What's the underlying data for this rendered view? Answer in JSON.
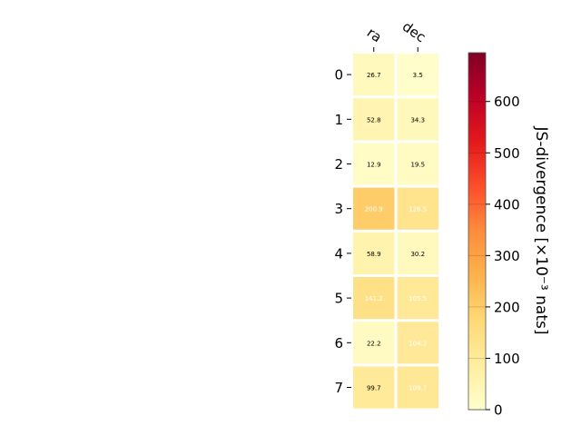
{
  "chart_data": {
    "type": "heatmap",
    "columns": [
      "ra",
      "dec"
    ],
    "rows": [
      "0",
      "1",
      "2",
      "3",
      "4",
      "5",
      "6",
      "7"
    ],
    "values": [
      [
        26.7,
        3.5
      ],
      [
        52.8,
        34.3
      ],
      [
        12.9,
        19.5
      ],
      [
        200.9,
        126.5
      ],
      [
        58.9,
        30.2
      ],
      [
        141.2,
        105.5
      ],
      [
        22.2,
        104.2
      ],
      [
        99.7,
        109.7
      ]
    ],
    "value_labels": [
      [
        "26.7",
        "3.5"
      ],
      [
        "52.8",
        "34.3"
      ],
      [
        "12.9",
        "19.5"
      ],
      [
        "200.9",
        "126.5"
      ],
      [
        "58.9",
        "30.2"
      ],
      [
        "141.2",
        "105.5"
      ],
      [
        "22.2",
        "104.2"
      ],
      [
        "99.7",
        "109.7"
      ]
    ],
    "colorbar": {
      "label": "JS-divergence [×10⁻³ nats]",
      "range": [
        0,
        695
      ],
      "ticks": [
        0,
        100,
        200,
        300,
        400,
        500,
        600
      ],
      "colormap": [
        "#ffffcc",
        "#ffeda0",
        "#fed976",
        "#feb24c",
        "#fd8d3c",
        "#fc4e2a",
        "#e31a1c",
        "#bd0026",
        "#800026"
      ]
    },
    "grid": false
  }
}
